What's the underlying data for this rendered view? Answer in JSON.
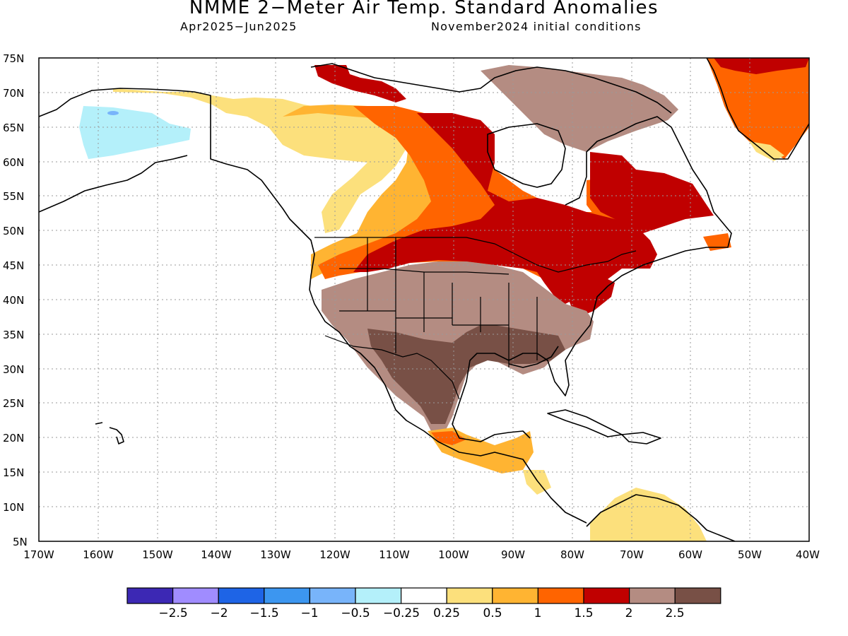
{
  "header": {
    "title": "NMME 2-Meter Air Temp. Standard Anomalies",
    "period": "Apr2025-Jun2025",
    "initial_conditions": "November2024 initial conditions"
  },
  "map": {
    "projection": "cylindrical equidistant",
    "lon_range": [
      -170,
      -40
    ],
    "lat_range": [
      5,
      75
    ],
    "lat_labels": [
      "75N",
      "70N",
      "65N",
      "60N",
      "55N",
      "50N",
      "45N",
      "40N",
      "35N",
      "30N",
      "25N",
      "20N",
      "15N",
      "10N",
      "5N"
    ],
    "lon_labels": [
      "170W",
      "160W",
      "150W",
      "140W",
      "130W",
      "120W",
      "110W",
      "100W",
      "90W",
      "80W",
      "70W",
      "60W",
      "50W",
      "40W"
    ],
    "grid": "dotted",
    "anomaly_regions": [
      {
        "region": "Alaska interior",
        "category": "-0.5 to -0.25",
        "color": "#b4f0fa"
      },
      {
        "region": "Yukon / NW Canada",
        "category": "0.25 to 0.5",
        "color": "#fce07c"
      },
      {
        "region": "Northern Quebec / Hudson Bay east",
        "category": "1.5 to 2",
        "color": "#c00000"
      },
      {
        "region": "Canadian prairies / Great Lakes",
        "category": "1.5 to 2",
        "color": "#c00000"
      },
      {
        "region": "Central Canada",
        "category": "1 to 1.5",
        "color": "#ff6400"
      },
      {
        "region": "Western US interior",
        "category": "2 to 2.5",
        "color": "#b48c82"
      },
      {
        "region": "Southern Plains / Mexico",
        "category": "> 2.5",
        "color": "#785046"
      },
      {
        "region": "Greenland",
        "category": "1 to 1.5",
        "color": "#ff6400"
      },
      {
        "region": "Central America",
        "category": "0.25 to 0.5",
        "color": "#fce07c"
      }
    ]
  },
  "colorbar": {
    "colors": [
      "#3c28b4",
      "#a08cff",
      "#1e64e6",
      "#3c96f0",
      "#78b4fa",
      "#b4f0fa",
      "#ffffff",
      "#fce07c",
      "#ffb432",
      "#ff6400",
      "#c00000",
      "#b48c82",
      "#785046"
    ],
    "labels": [
      "-2.5",
      "-2",
      "-1.5",
      "-1",
      "-0.5",
      "-0.25",
      "0.25",
      "0.5",
      "1",
      "1.5",
      "2",
      "2.5"
    ]
  }
}
